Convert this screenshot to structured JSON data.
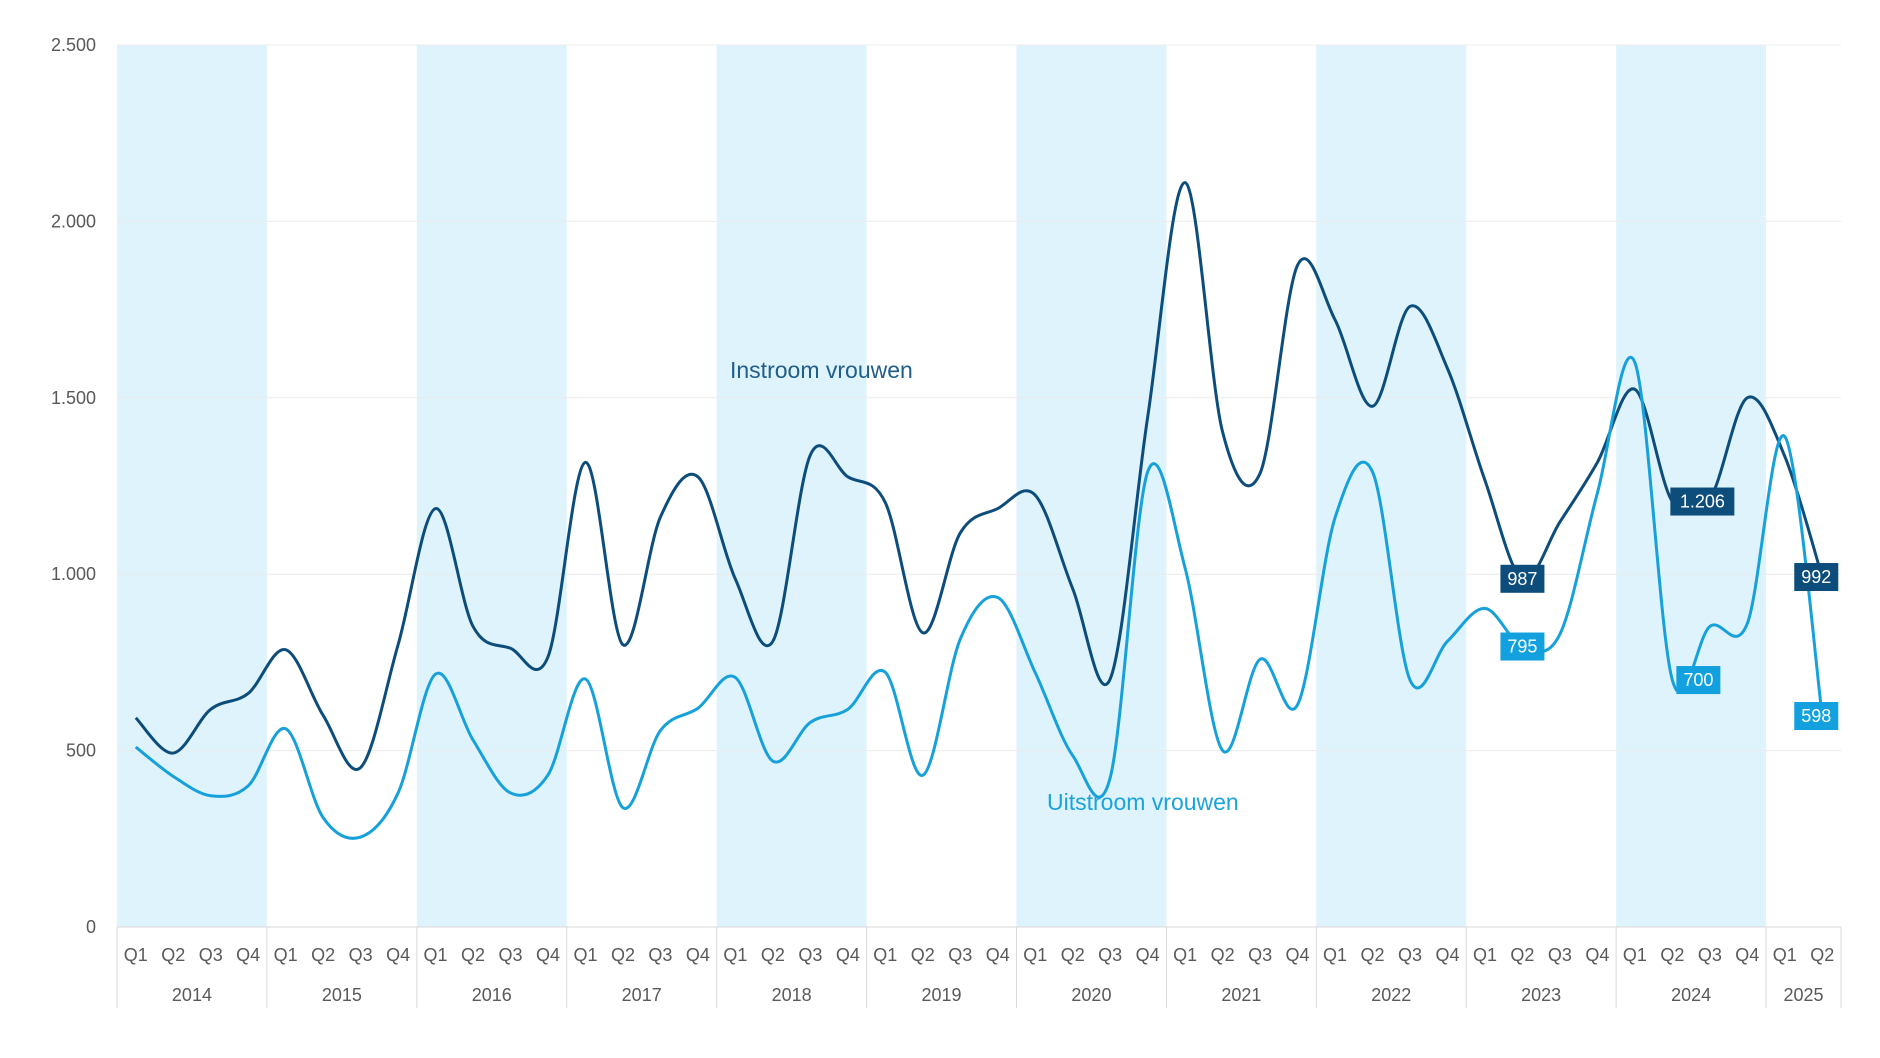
{
  "chart_data": {
    "type": "line",
    "title": "",
    "xlabel": "",
    "ylabel": "",
    "ylim": [
      0,
      2500
    ],
    "yticks": [
      0,
      500,
      1000,
      1500,
      2000,
      2500
    ],
    "ytick_labels": [
      "0",
      "500",
      "1.000",
      "1.500",
      "2.000",
      "2.500"
    ],
    "grid": true,
    "legend": "inline labels",
    "years": [
      "2014",
      "2015",
      "2016",
      "2017",
      "2018",
      "2019",
      "2020",
      "2021",
      "2022",
      "2023",
      "2024",
      "2025"
    ],
    "quarters_per_year": [
      4,
      4,
      4,
      4,
      4,
      4,
      4,
      4,
      4,
      4,
      4,
      2
    ],
    "quarter_labels": [
      "Q1",
      "Q2",
      "Q3",
      "Q4"
    ],
    "series": [
      {
        "name": "Instroom vrouwen",
        "color": "#0d4d7c",
        "values": [
          593,
          493,
          617,
          662,
          786,
          600,
          452,
          800,
          1186,
          852,
          790,
          766,
          1317,
          800,
          1162,
          1276,
          986,
          810,
          1338,
          1276,
          1203,
          834,
          1117,
          1186,
          1224,
          959,
          703,
          1445,
          2110,
          1403,
          1286,
          1876,
          1721,
          1476,
          1759,
          1583,
          1266,
          987,
          1148,
          1317,
          1524,
          1206,
          1214,
          1500,
          1334,
          992
        ],
        "data_labels": [
          {
            "index": 37,
            "text": "987"
          },
          {
            "index": 41,
            "text": "1.206"
          },
          {
            "index": 45,
            "text": "992"
          }
        ]
      },
      {
        "name": "Uitstroom vrouwen",
        "color": "#17a1da",
        "values": [
          510,
          427,
          372,
          400,
          562,
          310,
          255,
          380,
          717,
          530,
          380,
          431,
          703,
          338,
          557,
          620,
          707,
          470,
          580,
          617,
          722,
          430,
          816,
          934,
          721,
          486,
          423,
          1290,
          1017,
          500,
          759,
          630,
          1160,
          1290,
          700,
          810,
          903,
          795,
          830,
          1230,
          1600,
          700,
          852,
          860,
          1390,
          598
        ],
        "data_labels": [
          {
            "index": 37,
            "text": "795"
          },
          {
            "index": 41,
            "text": "700"
          },
          {
            "index": 45,
            "text": "598"
          }
        ]
      }
    ],
    "band_color": "#dff3fc"
  }
}
